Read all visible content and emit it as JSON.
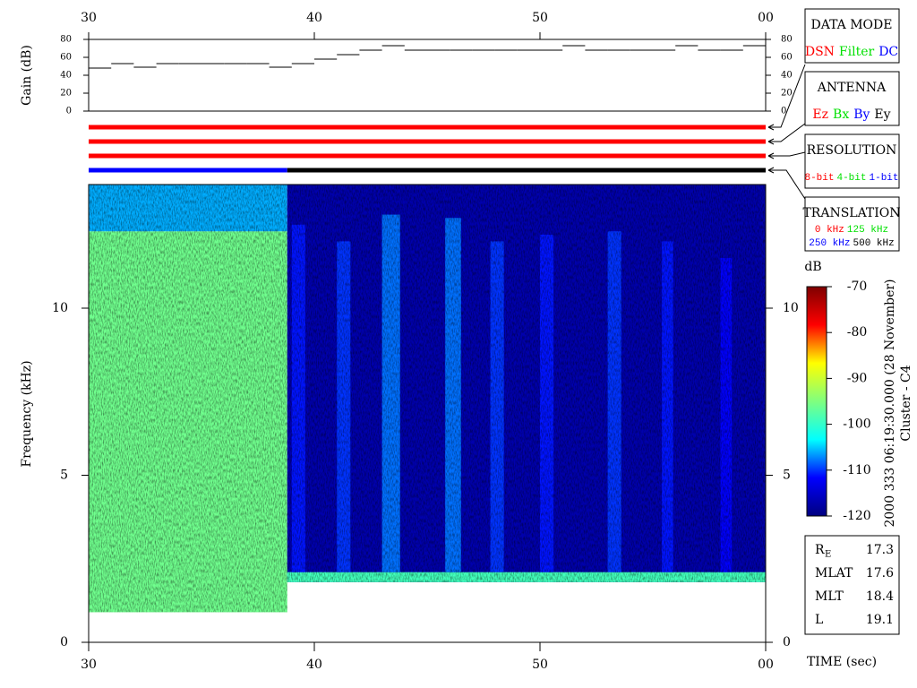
{
  "chart_data": [
    {
      "type": "step",
      "ylabel": "Gain (dB)",
      "color": "#000000",
      "xlim": [
        30,
        60
      ],
      "xticks": [
        30,
        40,
        50,
        {
          "value": 60,
          "label": "00"
        }
      ],
      "ylim": [
        0,
        80
      ],
      "yticks": [
        0,
        20,
        40,
        60,
        80
      ],
      "x": [
        30,
        31,
        32,
        33,
        34,
        35,
        36,
        37,
        38,
        39,
        40,
        41,
        42,
        43,
        44,
        45,
        46,
        47,
        48,
        49,
        50,
        51,
        52,
        53,
        54,
        55,
        56,
        57,
        58,
        59
      ],
      "values": [
        48,
        53,
        49,
        53,
        53,
        53,
        53,
        53,
        49,
        53,
        58,
        63,
        68,
        73,
        68,
        68,
        68,
        68,
        68,
        68,
        68,
        73,
        68,
        68,
        68,
        68,
        73,
        68,
        68,
        73
      ]
    },
    {
      "type": "status",
      "xlim": [
        30,
        60
      ],
      "bars": [
        {
          "segments": [
            {
              "x": [
                30,
                60
              ],
              "color": "#ff0000"
            }
          ]
        },
        {
          "segments": [
            {
              "x": [
                30,
                60
              ],
              "color": "#ff0000"
            }
          ]
        },
        {
          "segments": [
            {
              "x": [
                30,
                60
              ],
              "color": "#ff0000"
            }
          ]
        },
        {
          "segments": [
            {
              "x": [
                30,
                38.8
              ],
              "color": "#0000ff"
            },
            {
              "x": [
                38.8,
                60
              ],
              "color": "#000000"
            }
          ]
        }
      ]
    },
    {
      "type": "spectrogram",
      "xlabel": "TIME (sec)",
      "ylabel": "Frequency (kHz)",
      "xlim": [
        30,
        60
      ],
      "xticks": [
        30,
        40,
        50,
        {
          "value": 60,
          "label": "00"
        }
      ],
      "ylim": [
        0,
        13.7
      ],
      "yticks": [
        0,
        5,
        10
      ],
      "blocks": [
        {
          "x": [
            30,
            38.8
          ],
          "y": [
            0.9,
            12.3
          ],
          "level": -96
        },
        {
          "x": [
            30,
            38.8
          ],
          "y": [
            12.3,
            13.7
          ],
          "level": -106
        },
        {
          "x": [
            38.8,
            60
          ],
          "y": [
            1.8,
            13.7
          ],
          "level": -117
        },
        {
          "x": [
            38.8,
            60
          ],
          "y": [
            1.8,
            2.1
          ],
          "level": -99
        },
        {
          "x": [
            39.0,
            39.6
          ],
          "y": [
            2.1,
            12.5
          ],
          "level": -111
        },
        {
          "x": [
            41.0,
            41.6
          ],
          "y": [
            2.1,
            12.0
          ],
          "level": -110
        },
        {
          "x": [
            43.0,
            43.8
          ],
          "y": [
            2.1,
            12.8
          ],
          "level": -108
        },
        {
          "x": [
            45.8,
            46.5
          ],
          "y": [
            2.1,
            12.7
          ],
          "level": -108
        },
        {
          "x": [
            47.8,
            48.4
          ],
          "y": [
            2.1,
            12.0
          ],
          "level": -110
        },
        {
          "x": [
            50.0,
            50.6
          ],
          "y": [
            2.1,
            12.2
          ],
          "level": -111
        },
        {
          "x": [
            53.0,
            53.6
          ],
          "y": [
            2.1,
            12.3
          ],
          "level": -110
        },
        {
          "x": [
            55.4,
            55.9
          ],
          "y": [
            2.1,
            12.0
          ],
          "level": -111
        },
        {
          "x": [
            58.0,
            58.5
          ],
          "y": [
            2.1,
            11.5
          ],
          "level": -112
        }
      ]
    },
    {
      "type": "colorbar",
      "label": "dB",
      "ylim": [
        -120,
        -70
      ],
      "yticks": [
        -70,
        -80,
        -90,
        -100,
        -110,
        -120
      ],
      "colormap": [
        "#00007f",
        "#0000ff",
        "#00ffff",
        "#7fff7f",
        "#ffff00",
        "#ff0000",
        "#7f0000"
      ]
    }
  ],
  "legend_panels": [
    {
      "title": "DATA MODE",
      "rows": [
        [
          {
            "text": "DSN",
            "color": "#ff0000"
          },
          {
            "text": "Filter",
            "color": "#00e000"
          },
          {
            "text": "DC",
            "color": "#0000ff"
          }
        ]
      ]
    },
    {
      "title": "ANTENNA",
      "rows": [
        [
          {
            "text": "Ez",
            "color": "#ff0000"
          },
          {
            "text": "Bx",
            "color": "#00e000"
          },
          {
            "text": "By",
            "color": "#0000ff"
          },
          {
            "text": "Ey",
            "color": "#000000"
          }
        ]
      ]
    },
    {
      "title": "RESOLUTION",
      "rows": [
        [
          {
            "text": "8-bit",
            "color": "#ff0000"
          },
          {
            "text": "4-bit",
            "color": "#00e000"
          },
          {
            "text": "1-bit",
            "color": "#0000ff"
          }
        ]
      ]
    },
    {
      "title": "TRANSLATION",
      "rows": [
        [
          {
            "text": "0 kHz",
            "color": "#ff0000"
          },
          {
            "text": "125 kHz",
            "color": "#00e000"
          }
        ],
        [
          {
            "text": "250 kHz",
            "color": "#0000ff"
          },
          {
            "text": "500 kHz",
            "color": "#000000"
          }
        ]
      ]
    }
  ],
  "annotations": {
    "timestamp": "2000 333 06:19:30.000 (28 November)",
    "spacecraft": "Cluster - C4"
  },
  "ephemeris": [
    {
      "label": "R",
      "sub": "E",
      "value": 17.3
    },
    {
      "label": "MLAT",
      "value": 17.6
    },
    {
      "label": "MLT",
      "value": 18.4
    },
    {
      "label": "L",
      "value": 19.1
    }
  ]
}
